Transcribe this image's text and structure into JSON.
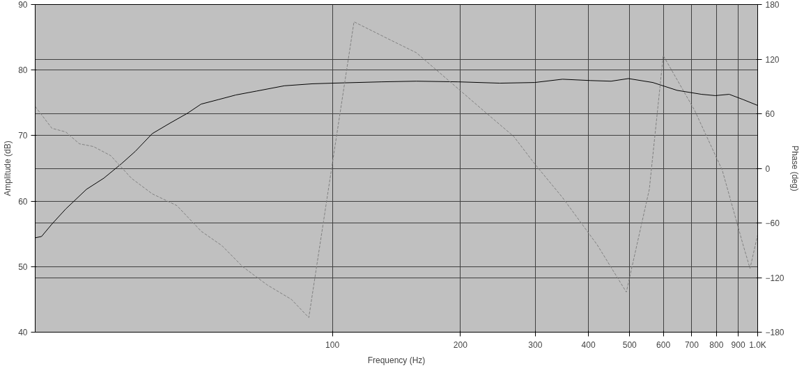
{
  "chart_data": {
    "type": "line",
    "xlabel": "Frequency (Hz)",
    "ylabel": "Amplitude (dB)",
    "y2label": "Phase (deg)",
    "log": "x",
    "grid": true,
    "xlim": [
      20,
      1000
    ],
    "xticks": [
      100,
      200,
      300,
      400,
      500,
      600,
      700,
      800,
      900,
      {
        "value": 1000,
        "label": "1.0K"
      }
    ],
    "ylim": [
      40,
      90
    ],
    "yticks": [
      40,
      50,
      60,
      70,
      80,
      90
    ],
    "y2lim": [
      -180,
      180
    ],
    "y2ticks": [
      -180,
      -120,
      -60,
      0,
      60,
      120,
      180
    ],
    "series": [
      {
        "color": "#000000",
        "line_style": "solid",
        "x": [
          20,
          20.7,
          21.9,
          23.6,
          26.4,
          29.0,
          31.9,
          34.4,
          37.7,
          41.5,
          45.6,
          49.1,
          54.0,
          59.3,
          66.4,
          77.1,
          89.6,
          100,
          130.6,
          157.6,
          197.6,
          247.6,
          298.9,
          347.5,
          403.9,
          452.1,
          496.7,
          566.8,
          646.6,
          737.6,
          795,
          857.1,
          924,
          1000
        ],
        "values": [
          54.4,
          54.6,
          56.5,
          58.8,
          61.8,
          63.5,
          65.7,
          67.6,
          70.3,
          71.9,
          73.4,
          74.8,
          75.5,
          76.2,
          76.8,
          77.6,
          77.9,
          78.0,
          78.2,
          78.3,
          78.2,
          78.0,
          78.1,
          78.6,
          78.4,
          78.3,
          78.7,
          78.1,
          76.9,
          76.3,
          76.1,
          76.3,
          75.5,
          74.6
        ]
      },
      {
        "color": "#808080",
        "line_style": "dashed",
        "axis": "y2",
        "x": [
          20,
          21.9,
          23.6,
          25.4,
          27.4,
          30.1,
          33.7,
          37.7,
          43.1,
          49.1,
          55.0,
          61.5,
          70.2,
          80.1,
          88.0,
          112.4,
          135.6,
          157.6,
          190.3,
          229.7,
          267.0,
          298.9,
          347.5,
          419.4,
          491.1,
          556.2,
          599.7,
          710.3,
          825.5,
          924,
          959.4,
          1000
        ],
        "values": [
          68,
          44,
          40,
          27,
          24,
          14,
          -11,
          -28,
          -41,
          -69,
          -85,
          -108,
          -128,
          -144,
          -164,
          161,
          142,
          127,
          94,
          61,
          35,
          5,
          -32,
          -84,
          -136,
          -23,
          124,
          64,
          -2,
          -84,
          -110,
          -73
        ]
      }
    ]
  }
}
